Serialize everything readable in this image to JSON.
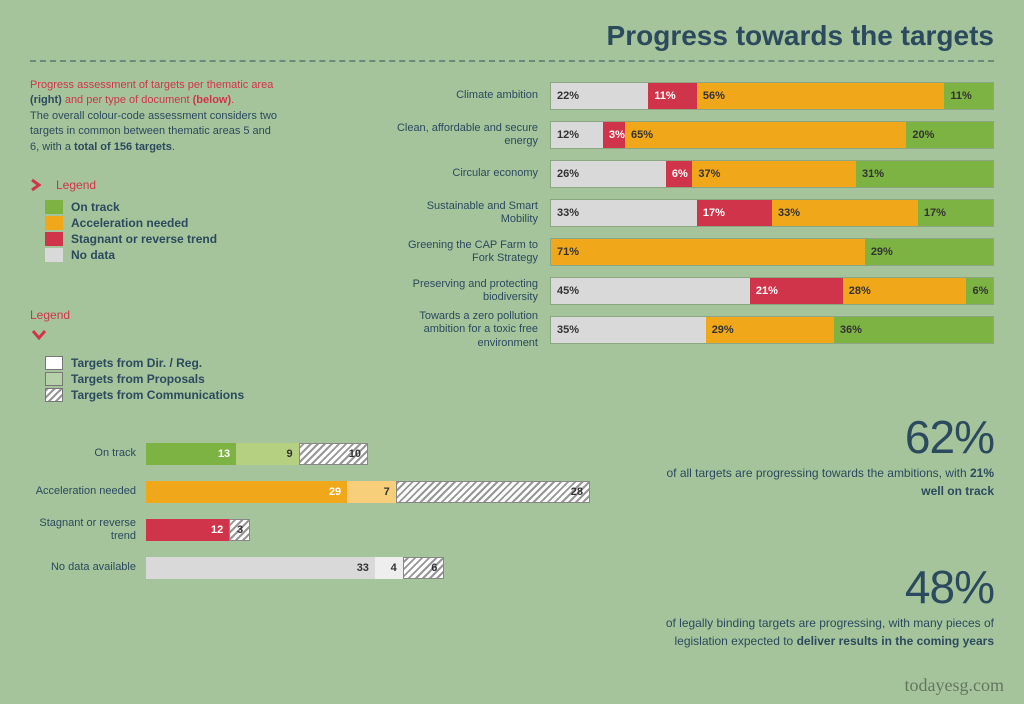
{
  "title": "Progress towards the targets",
  "intro": {
    "line1_red": "Progress assessment of targets per thematic area",
    "line1_bold1": "(right)",
    "line1_mid": " and per type of document ",
    "line1_bold2": "(below)",
    "line2": "The overall colour-code assessment considers two targets in common between thematic areas 5 and 6, with a ",
    "line2_bold": "total of 156 targets",
    "line2_end": "."
  },
  "colors": {
    "on_track": "#7cb342",
    "accel": "#f0a81a",
    "stagnant": "#d0344a",
    "nodata": "#d9d9d9",
    "dir_reg": "#ffffff",
    "proposals": "#b6d0a8",
    "text_dark": "#2b4a5e"
  },
  "legend1": {
    "title": "Legend",
    "items": [
      {
        "label": "On track",
        "color": "#7cb342"
      },
      {
        "label": "Acceleration needed",
        "color": "#f0a81a"
      },
      {
        "label": "Stagnant or reverse trend",
        "color": "#d0344a"
      },
      {
        "label": "No data",
        "color": "#d9d9d9"
      }
    ]
  },
  "legend2": {
    "title": "Legend",
    "items": [
      {
        "label": "Targets from Dir. / Reg.",
        "fill": "#ffffff",
        "hatched": false
      },
      {
        "label": "Targets from Proposals",
        "fill": "#b6d0a8",
        "hatched": false
      },
      {
        "label": "Targets from Communications",
        "fill": "#ffffff",
        "hatched": true
      }
    ]
  },
  "stack_chart": {
    "type": "stacked-bar-horizontal",
    "unit": "%",
    "segments_order": [
      "nodata",
      "stagnant",
      "accel",
      "on_track"
    ],
    "seg_colors": {
      "nodata": "#d9d9d9",
      "stagnant": "#d0344a",
      "accel": "#f0a81a",
      "on_track": "#7cb342"
    },
    "seg_text_color": {
      "nodata": "#333",
      "stagnant": "#fff",
      "accel": "#333",
      "on_track": "#333"
    },
    "rows": [
      {
        "label": "Climate ambition",
        "vals": {
          "nodata": 22,
          "stagnant": 11,
          "accel": 56,
          "on_track": 11
        }
      },
      {
        "label": "Clean, affordable and secure energy",
        "vals": {
          "nodata": 12,
          "stagnant": 3,
          "accel": 65,
          "on_track": 20
        }
      },
      {
        "label": "Circular economy",
        "vals": {
          "nodata": 26,
          "stagnant": 6,
          "accel": 37,
          "on_track": 31
        }
      },
      {
        "label": "Sustainable and Smart Mobility",
        "vals": {
          "nodata": 33,
          "stagnant": 17,
          "accel": 33,
          "on_track": 17
        }
      },
      {
        "label": "Greening the CAP Farm to Fork Strategy",
        "vals": {
          "nodata": 0,
          "stagnant": 0,
          "accel": 71,
          "on_track": 29
        }
      },
      {
        "label": "Preserving and protecting biodiversity",
        "vals": {
          "nodata": 45,
          "stagnant": 21,
          "accel": 28,
          "on_track": 6
        }
      },
      {
        "label": "Towards a zero pollution ambition for a toxic free environment",
        "vals": {
          "nodata": 35,
          "stagnant": 0,
          "accel": 29,
          "on_track": 36
        }
      }
    ]
  },
  "stats": [
    {
      "num": "62%",
      "text_pre": "of all targets are progressing towards the ambitions, with ",
      "text_bold": "21% well on track",
      "text_post": ""
    },
    {
      "num": "48%",
      "text_pre": "of legally binding targets are progressing, with many pieces of legislation expected to ",
      "text_bold": "deliver results in the coming years",
      "text_post": ""
    }
  ],
  "bottom_chart": {
    "type": "stacked-bar-horizontal",
    "max_total": 64,
    "rows": [
      {
        "label": "On track",
        "segs": [
          {
            "val": 13,
            "fill": "#7cb342",
            "text_color": "#fff",
            "hatched": false
          },
          {
            "val": 9,
            "fill": "#b6d082",
            "text_color": "#333",
            "hatched": false
          },
          {
            "val": 10,
            "fill": "#ffffff",
            "text_color": "#333",
            "hatched": true
          }
        ]
      },
      {
        "label": "Acceleration needed",
        "segs": [
          {
            "val": 29,
            "fill": "#f0a81a",
            "text_color": "#fff",
            "hatched": false
          },
          {
            "val": 7,
            "fill": "#f7cf7a",
            "text_color": "#333",
            "hatched": false
          },
          {
            "val": 28,
            "fill": "#ffffff",
            "text_color": "#333",
            "hatched": true
          }
        ]
      },
      {
        "label": "Stagnant or reverse trend",
        "segs": [
          {
            "val": 12,
            "fill": "#d0344a",
            "text_color": "#fff",
            "hatched": false
          },
          {
            "val": 3,
            "fill": "#ffffff",
            "text_color": "#333",
            "hatched": true,
            "tint": "#d0344a"
          }
        ]
      },
      {
        "label": "No data available",
        "segs": [
          {
            "val": 33,
            "fill": "#d9d9d9",
            "text_color": "#333",
            "hatched": false
          },
          {
            "val": 4,
            "fill": "#eeeeee",
            "text_color": "#333",
            "hatched": false
          },
          {
            "val": 6,
            "fill": "#ffffff",
            "text_color": "#333",
            "hatched": true
          }
        ]
      }
    ]
  },
  "watermark": "todayesg.com"
}
